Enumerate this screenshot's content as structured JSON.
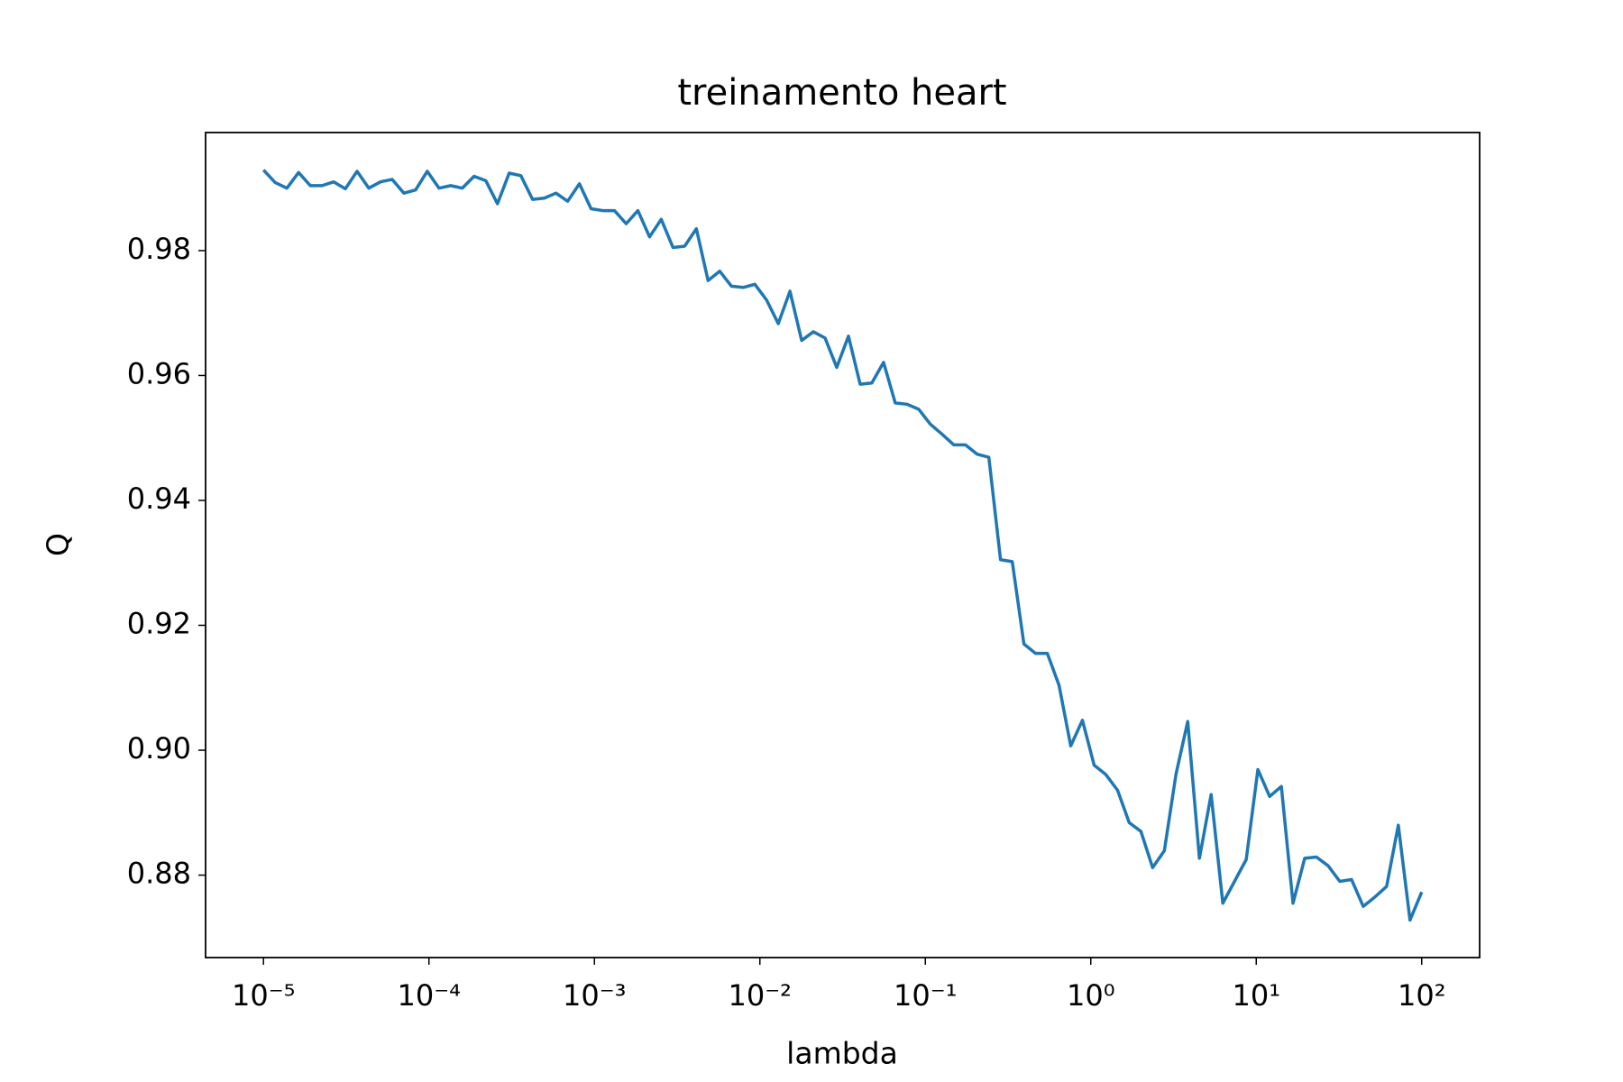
{
  "chart_data": {
    "type": "line",
    "title": "treinamento heart",
    "xlabel": "lambda",
    "ylabel": "Q",
    "xscale": "log",
    "x": [
      1e-05,
      1.177e-05,
      1.385e-05,
      1.63e-05,
      1.918e-05,
      2.257e-05,
      2.656e-05,
      3.126e-05,
      3.678e-05,
      4.329e-05,
      5.094e-05,
      5.995e-05,
      7.055e-05,
      8.302e-05,
      9.77e-05,
      0.000115,
      0.0001353,
      0.0001592,
      0.0001874,
      0.0002205,
      0.0002595,
      0.0003054,
      0.0003594,
      0.0004229,
      0.0004977,
      0.0005857,
      0.0006893,
      0.0008111,
      0.0009545,
      0.001123,
      0.001322,
      0.001556,
      0.001831,
      0.002154,
      0.002535,
      0.002984,
      0.003511,
      0.004132,
      0.004863,
      0.005722,
      0.006734,
      0.007925,
      0.009326,
      0.01097,
      0.01292,
      0.0152,
      0.01789,
      0.02105,
      0.02477,
      0.02915,
      0.03431,
      0.04037,
      0.04751,
      0.05591,
      0.06579,
      0.07743,
      0.09112,
      0.1072,
      0.1262,
      0.1485,
      0.1748,
      0.2057,
      0.242,
      0.2848,
      0.3352,
      0.3944,
      0.4642,
      0.5462,
      0.6428,
      0.7565,
      0.8902,
      1.048,
      1.233,
      1.451,
      1.707,
      2.009,
      2.364,
      2.783,
      3.275,
      3.854,
      4.535,
      5.337,
      6.28,
      7.391,
      8.697,
      10.23,
      12.05,
      14.18,
      16.68,
      19.63,
      23.1,
      27.19,
      31.99,
      37.65,
      44.31,
      52.14,
      61.36,
      72.21,
      84.98,
      100
    ],
    "series": [
      {
        "color": "#1f77b4",
        "values": [
          0.9929,
          0.9909,
          0.99,
          0.9925,
          0.9904,
          0.9904,
          0.991,
          0.9899,
          0.9927,
          0.99,
          0.991,
          0.9914,
          0.9892,
          0.9897,
          0.9927,
          0.99,
          0.9904,
          0.99,
          0.9919,
          0.9912,
          0.9875,
          0.9924,
          0.992,
          0.9882,
          0.9884,
          0.9892,
          0.9879,
          0.9907,
          0.9867,
          0.9864,
          0.9864,
          0.9843,
          0.9864,
          0.9822,
          0.985,
          0.9805,
          0.9807,
          0.9835,
          0.9752,
          0.9767,
          0.9743,
          0.9741,
          0.9746,
          0.9721,
          0.9683,
          0.9735,
          0.9656,
          0.967,
          0.966,
          0.9613,
          0.9663,
          0.9586,
          0.9588,
          0.9621,
          0.9556,
          0.9554,
          0.9546,
          0.9522,
          0.9506,
          0.9489,
          0.9489,
          0.9474,
          0.9469,
          0.9305,
          0.9302,
          0.917,
          0.9155,
          0.9155,
          0.9104,
          0.9007,
          0.9048,
          0.8976,
          0.8961,
          0.8936,
          0.8884,
          0.887,
          0.8812,
          0.8839,
          0.8962,
          0.9046,
          0.8827,
          0.8929,
          0.8755,
          0.879,
          0.8825,
          0.8969,
          0.8926,
          0.8942,
          0.8755,
          0.8827,
          0.8829,
          0.8815,
          0.879,
          0.8793,
          0.875,
          0.8765,
          0.8782,
          0.888,
          0.8728,
          0.8773
        ]
      }
    ],
    "xlim": [
      4.467e-06,
      223.9
    ],
    "xticks": [
      {
        "value": 1e-05,
        "label": "10⁻⁵"
      },
      {
        "value": 0.0001,
        "label": "10⁻⁴"
      },
      {
        "value": 0.001,
        "label": "10⁻³"
      },
      {
        "value": 0.01,
        "label": "10⁻²"
      },
      {
        "value": 0.1,
        "label": "10⁻¹"
      },
      {
        "value": 1,
        "label": "10⁰"
      },
      {
        "value": 10,
        "label": "10¹"
      },
      {
        "value": 100,
        "label": "10²"
      }
    ],
    "ylim": [
      0.8668,
      0.9989
    ],
    "yticks": [
      0.88,
      {
        "value": 0.9,
        "label": "0.90"
      },
      0.92,
      0.94,
      0.96,
      0.98
    ],
    "grid": false
  }
}
